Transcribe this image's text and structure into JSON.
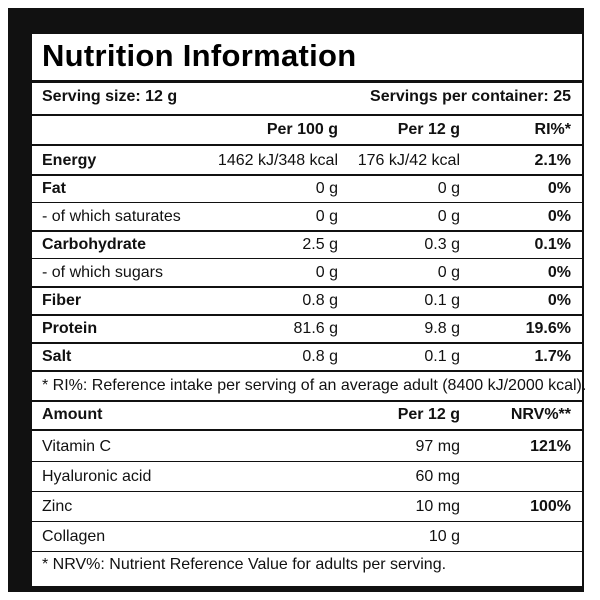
{
  "title": "Nutrition Information",
  "serving": {
    "size": "Serving size: 12 g",
    "servings": "Servings per container: 25"
  },
  "table": {
    "header": {
      "per100": "Per 100 g",
      "per12": "Per 12 g",
      "ri": "RI%*"
    },
    "rows": [
      {
        "name": "Energy",
        "per100": "1462 kJ/348 kcal",
        "per12": "176 kJ/42 kcal",
        "ri": "2.1%"
      },
      {
        "name": "Fat",
        "per100": "0 g",
        "per12": "0 g",
        "ri": "0%"
      },
      {
        "name": "- of which saturates",
        "per100": "0 g",
        "per12": "0 g",
        "ri": "0%"
      },
      {
        "name": "Carbohydrate",
        "per100": "2.5 g",
        "per12": "0.3 g",
        "ri": "0.1%"
      },
      {
        "name": "- of which sugars",
        "per100": "0 g",
        "per12": "0 g",
        "ri": "0%"
      },
      {
        "name": "Fiber",
        "per100": "0.8 g",
        "per12": "0.1 g",
        "ri": "0%"
      },
      {
        "name": "Protein",
        "per100": "81.6 g",
        "per12": "9.8 g",
        "ri": "19.6%"
      },
      {
        "name": "Salt",
        "per100": "0.8 g",
        "per12": "0.1 g",
        "ri": "1.7%"
      }
    ],
    "footnote": "* RI%: Reference intake per serving of an average adult (8400 kJ/2000 kcal)."
  },
  "amounts": {
    "header": {
      "amount": "Amount",
      "per12": "Per 12 g",
      "nrv": "NRV%**"
    },
    "rows": [
      {
        "name": "Vitamin C",
        "per12": "97 mg",
        "nrv": "121%"
      },
      {
        "name": "Hyaluronic acid",
        "per12": "60 mg"
      },
      {
        "name": "Zinc",
        "per12": "10 mg",
        "nrv": "100%"
      },
      {
        "name": "Collagen",
        "per12": "10 g"
      }
    ],
    "footnote": "* NRV%: Nutrient Reference Value for adults per serving."
  }
}
